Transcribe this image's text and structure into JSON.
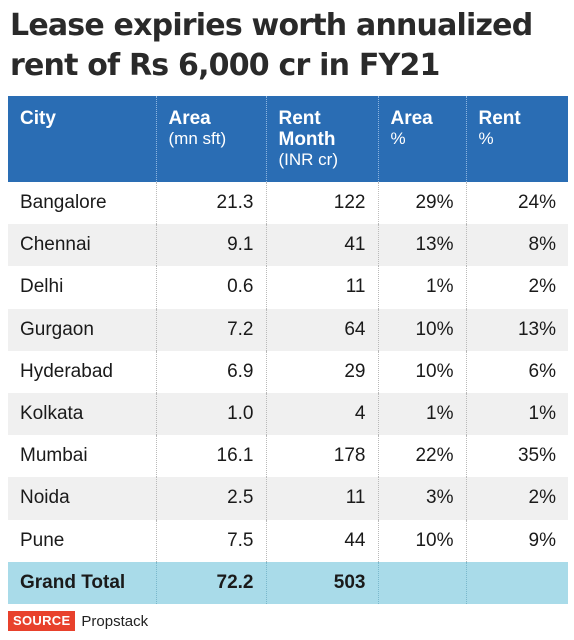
{
  "title": {
    "line1": "Lease expiries worth annualized",
    "line2": "rent of Rs 6,000 cr in FY21"
  },
  "chart_data": {
    "type": "table",
    "title": "Lease expiries worth annualized rent of Rs 6,000 cr in FY21",
    "columns": [
      {
        "label": "City",
        "sub": ""
      },
      {
        "label": "Area",
        "sub": "(mn sft)"
      },
      {
        "label": "Rent Month",
        "sub": "(INR cr)"
      },
      {
        "label": "Area",
        "sub": "%"
      },
      {
        "label": "Rent",
        "sub": "%"
      }
    ],
    "rows": [
      {
        "city": "Bangalore",
        "area": "21.3",
        "rent": "122",
        "area_pct": "29%",
        "rent_pct": "24%"
      },
      {
        "city": "Chennai",
        "area": "9.1",
        "rent": "41",
        "area_pct": "13%",
        "rent_pct": "8%"
      },
      {
        "city": "Delhi",
        "area": "0.6",
        "rent": "11",
        "area_pct": "1%",
        "rent_pct": "2%"
      },
      {
        "city": "Gurgaon",
        "area": "7.2",
        "rent": "64",
        "area_pct": "10%",
        "rent_pct": "13%"
      },
      {
        "city": "Hyderabad",
        "area": "6.9",
        "rent": "29",
        "area_pct": "10%",
        "rent_pct": "6%"
      },
      {
        "city": "Kolkata",
        "area": "1.0",
        "rent": "4",
        "area_pct": "1%",
        "rent_pct": "1%"
      },
      {
        "city": "Mumbai",
        "area": "16.1",
        "rent": "178",
        "area_pct": "22%",
        "rent_pct": "35%"
      },
      {
        "city": "Noida",
        "area": "2.5",
        "rent": "11",
        "area_pct": "3%",
        "rent_pct": "2%"
      },
      {
        "city": "Pune",
        "area": "7.5",
        "rent": "44",
        "area_pct": "10%",
        "rent_pct": "9%"
      }
    ],
    "total": {
      "label": "Grand Total",
      "area": "72.2",
      "rent": "503",
      "area_pct": "",
      "rent_pct": ""
    }
  },
  "source": {
    "badge": "SOURCE",
    "name": "Propstack"
  },
  "colors": {
    "header_bg": "#2a6db4",
    "total_bg": "#a9dbe9",
    "alt_row_bg": "#f0f0f0",
    "source_badge_bg": "#e8412c"
  }
}
